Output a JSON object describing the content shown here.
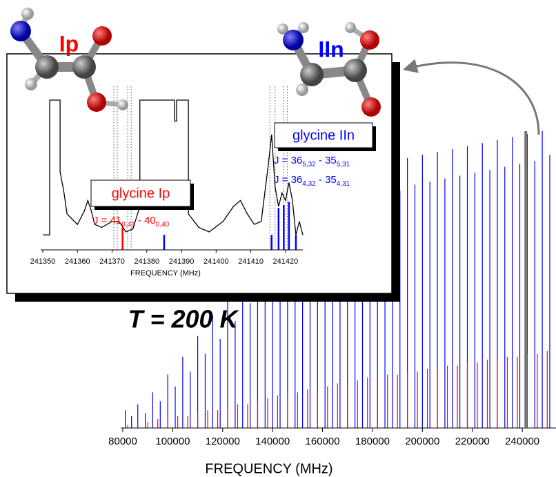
{
  "chart_data": [
    {
      "type": "stick",
      "x_label": "FREQUENCY  (MHz)",
      "annotation": "T = 200 K",
      "xlim": [
        80000,
        253500
      ],
      "ylim": [
        0,
        100
      ],
      "xticks": [
        80000,
        100000,
        120000,
        140000,
        160000,
        180000,
        200000,
        220000,
        240000
      ],
      "zoom_marker": 241400,
      "series": [
        {
          "color": "#0000ff",
          "x": [
            81000,
            83500,
            86000,
            89000,
            92000,
            95000,
            98000,
            101000,
            104000,
            107000,
            110000,
            113000,
            116000,
            119000,
            122000,
            125000,
            128000,
            131000,
            134000,
            137000,
            140000,
            143000,
            146000,
            149000,
            152000,
            155000,
            158000,
            161000,
            164000,
            167000,
            170000,
            173000,
            176000,
            179000,
            182000,
            185000,
            188000,
            191000,
            194000,
            197000,
            200000,
            203000,
            206000,
            209000,
            212000,
            215000,
            218000,
            221000,
            224000,
            227000,
            230000,
            233000,
            236000,
            239000,
            242000,
            245000,
            248000,
            251000
          ],
          "values": [
            6,
            4,
            8,
            5,
            12,
            9,
            18,
            14,
            24,
            19,
            31,
            25,
            38,
            30,
            45,
            36,
            52,
            42,
            58,
            47,
            64,
            52,
            70,
            58,
            74,
            62,
            78,
            66,
            81,
            70,
            84,
            73,
            86,
            76,
            88,
            78,
            89,
            80,
            91,
            82,
            92,
            83,
            93,
            84,
            94,
            85,
            95,
            86,
            96,
            87,
            97,
            88,
            98,
            89,
            99,
            90,
            100,
            92
          ]
        },
        {
          "color": "#ff0000",
          "x": [
            82000,
            86000,
            90000,
            94000,
            98000,
            102000,
            106000,
            110000,
            114000,
            118000,
            122000,
            126000,
            130000,
            134000,
            138000,
            142000,
            146000,
            150000,
            154000,
            158000,
            162000,
            166000,
            170000,
            174000,
            178000,
            182000,
            186000,
            190000,
            194000,
            198000,
            202000,
            206000,
            210000,
            214000,
            218000,
            222000,
            226000,
            230000,
            234000,
            238000,
            242000,
            246000,
            250000
          ],
          "values": [
            1,
            2,
            2,
            3,
            3,
            4,
            4,
            5,
            6,
            6,
            7,
            8,
            8,
            9,
            10,
            11,
            11,
            12,
            13,
            13,
            14,
            15,
            15,
            16,
            17,
            17,
            18,
            18,
            19,
            19,
            20,
            20,
            21,
            21,
            22,
            22,
            23,
            23,
            24,
            24,
            25,
            25,
            26
          ]
        }
      ]
    },
    {
      "type": "line",
      "x_label": "FREQUENCY  (MHz)",
      "xlim": [
        241350,
        241425
      ],
      "ylim": [
        0,
        100
      ],
      "xticks": [
        241350,
        241360,
        241370,
        241380,
        241390,
        241400,
        241410,
        241420
      ],
      "dotted_lines": [
        241370.5,
        241371.5,
        241374.5,
        241375.5,
        241415.5,
        241417,
        241419.5,
        241420.5
      ],
      "trace": {
        "color": "#000000",
        "x": [
          241350,
          241352,
          241352,
          241355,
          241355,
          241356,
          241357,
          241360,
          241362,
          241363,
          241364,
          241365,
          241367,
          241370,
          241372,
          241374,
          241376,
          241378,
          241378,
          241388,
          241388,
          241388.6,
          241388.6,
          241392,
          241392,
          241395,
          241398,
          241402,
          241405,
          241407,
          241409,
          241411,
          241413,
          241415,
          241416,
          241417,
          241418,
          241419,
          241420,
          241421,
          241422,
          241423,
          241424,
          241425
        ],
        "values": [
          10,
          10,
          100,
          100,
          52,
          40,
          24,
          17,
          26,
          33,
          26,
          17,
          15,
          19,
          19,
          12,
          14,
          29,
          100,
          100,
          86,
          86,
          100,
          100,
          24,
          15,
          12,
          19,
          29,
          33,
          24,
          17,
          19,
          56,
          77,
          42,
          29,
          38,
          33,
          45,
          33,
          10,
          19,
          10
        ]
      },
      "series": [
        {
          "color": "#ff0000",
          "x": [
            241373
          ],
          "values": [
            15
          ]
        },
        {
          "color": "#0000ff",
          "x": [
            241385,
            241416,
            241418,
            241419.5,
            241421,
            241423
          ],
          "values": [
            10,
            10,
            28,
            30,
            32,
            10
          ]
        }
      ],
      "labels": {
        "ip_box": "glycine Ip",
        "iin_box": "glycine IIn",
        "ip_molecule": "Ip",
        "iin_molecule": "IIn"
      },
      "transitions": {
        "ip": [
          {
            "text": "J = 41",
            "sub": "0,41"
          },
          {
            "text": " - 40",
            "sub": "0,40"
          }
        ],
        "iin_1": [
          {
            "text": "J = 36",
            "sub": "5,32"
          },
          {
            "text": " - 35",
            "sub": "5,31"
          }
        ],
        "iin_2": [
          {
            "text": "J = 36",
            "sub": "4,32"
          },
          {
            "text": " - 35",
            "sub": "4,31"
          }
        ]
      }
    }
  ]
}
